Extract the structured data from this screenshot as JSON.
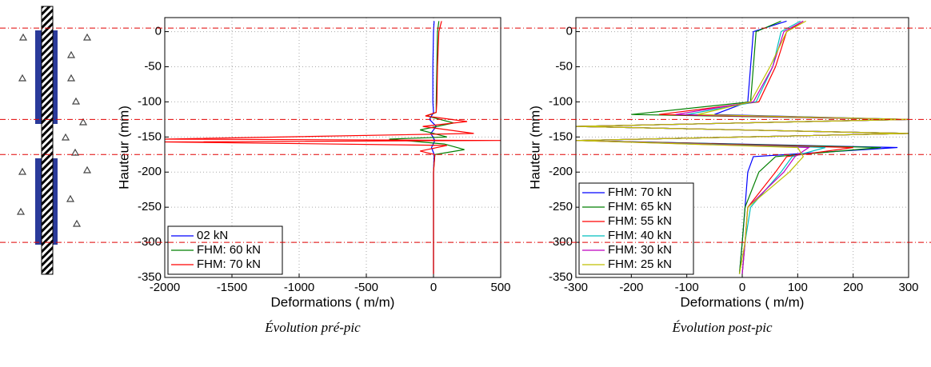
{
  "reference_heights": [
    5,
    -125,
    -175,
    -300
  ],
  "reference_color": "#e00000",
  "chart_data": [
    {
      "type": "line",
      "xlabel": "Deformations (  m/m)",
      "ylabel": "Hauteur (mm)",
      "caption": "Évolution pré-pic",
      "xlim": [
        -2000,
        500
      ],
      "ylim": [
        -350,
        20
      ],
      "xticks": [
        -2000,
        -1500,
        -1000,
        -500,
        0,
        500
      ],
      "yticks": [
        0,
        -50,
        -100,
        -150,
        -200,
        -250,
        -300,
        -350
      ],
      "grid": true,
      "legend": "lower left",
      "series": [
        {
          "name": "02 kN",
          "color": "#0000ff",
          "x": [
            5,
            0,
            -5,
            -5,
            0,
            -30,
            20,
            -20,
            10,
            -15,
            5,
            0,
            0,
            0,
            0
          ],
          "values": [
            15,
            0,
            -50,
            -100,
            -115,
            -125,
            -135,
            -145,
            -155,
            -165,
            -175,
            -200,
            -250,
            -300,
            -345
          ]
        },
        {
          "name": "FHM: 60 kN",
          "color": "#007f00",
          "x": [
            40,
            30,
            25,
            20,
            20,
            -50,
            150,
            -100,
            100,
            -330,
            80,
            230,
            10,
            0,
            0,
            0,
            0
          ],
          "values": [
            15,
            0,
            -50,
            -100,
            -115,
            -120,
            -130,
            -140,
            -150,
            -153,
            -160,
            -168,
            -175,
            -200,
            -250,
            -300,
            -345
          ]
        },
        {
          "name": "FHM: 70 kN",
          "color": "#ff0000",
          "x": [
            60,
            40,
            30,
            25,
            20,
            -60,
            250,
            -80,
            300,
            -2000,
            500,
            -2000,
            100,
            -100,
            10,
            0,
            0,
            0,
            0
          ],
          "values": [
            15,
            0,
            -50,
            -100,
            -115,
            -120,
            -128,
            -135,
            -145,
            -153,
            -155,
            -157,
            -162,
            -170,
            -175,
            -200,
            -250,
            -300,
            -345
          ]
        }
      ]
    },
    {
      "type": "line",
      "xlabel": "Deformations (  m/m)",
      "ylabel": "Hauteur (mm)",
      "caption": "Évolution post-pic",
      "xlim": [
        -300,
        300
      ],
      "ylim": [
        -350,
        20
      ],
      "xticks": [
        -300,
        -200,
        -100,
        0,
        100,
        200,
        300
      ],
      "yticks": [
        0,
        -50,
        -100,
        -150,
        -200,
        -250,
        -300,
        -350
      ],
      "grid": true,
      "legend": "lower left",
      "series": [
        {
          "name": "FHM: 70 kN",
          "color": "#0000ff",
          "x": [
            80,
            20,
            15,
            10,
            -50,
            300,
            -300,
            300,
            -300,
            280,
            20,
            10,
            5,
            0,
            -5
          ],
          "values": [
            15,
            0,
            -50,
            -100,
            -118,
            -125,
            -135,
            -145,
            -155,
            -165,
            -178,
            -200,
            -250,
            -300,
            -345
          ]
        },
        {
          "name": "FHM: 65 kN",
          "color": "#007f00",
          "x": [
            70,
            25,
            20,
            15,
            -200,
            300,
            -300,
            300,
            -300,
            250,
            60,
            30,
            5,
            0,
            -5
          ],
          "values": [
            15,
            0,
            -50,
            -100,
            -118,
            -125,
            -135,
            -145,
            -155,
            -165,
            -178,
            -200,
            -250,
            -300,
            -345
          ]
        },
        {
          "name": "FHM: 55 kN",
          "color": "#ff0000",
          "x": [
            110,
            80,
            60,
            30,
            -150,
            300,
            -300,
            300,
            -300,
            200,
            80,
            60,
            10,
            5,
            0
          ],
          "values": [
            15,
            0,
            -50,
            -100,
            -118,
            -125,
            -135,
            -145,
            -155,
            -165,
            -178,
            -200,
            -250,
            -300,
            -345
          ]
        },
        {
          "name": "FHM: 40 kN",
          "color": "#00bfbf",
          "x": [
            105,
            70,
            55,
            25,
            -100,
            300,
            -300,
            300,
            -300,
            150,
            90,
            70,
            15,
            5,
            0
          ],
          "values": [
            15,
            0,
            -50,
            -100,
            -118,
            -125,
            -135,
            -145,
            -155,
            -165,
            -178,
            -200,
            -250,
            -300,
            -345
          ]
        },
        {
          "name": "FHM: 30 kN",
          "color": "#bf00bf",
          "x": [
            110,
            75,
            55,
            20,
            -120,
            300,
            -300,
            300,
            -300,
            120,
            95,
            75,
            10,
            5,
            0
          ],
          "values": [
            15,
            0,
            -50,
            -100,
            -118,
            -125,
            -135,
            -145,
            -155,
            -165,
            -178,
            -200,
            -250,
            -300,
            -345
          ]
        },
        {
          "name": "FHM: 25 kN",
          "color": "#bfbf00",
          "x": [
            115,
            80,
            50,
            15,
            -80,
            300,
            -300,
            300,
            -300,
            100,
            110,
            85,
            10,
            5,
            -5
          ],
          "values": [
            15,
            0,
            -50,
            -100,
            -118,
            -125,
            -135,
            -145,
            -155,
            -165,
            -178,
            -200,
            -250,
            -300,
            -345
          ]
        }
      ]
    }
  ]
}
